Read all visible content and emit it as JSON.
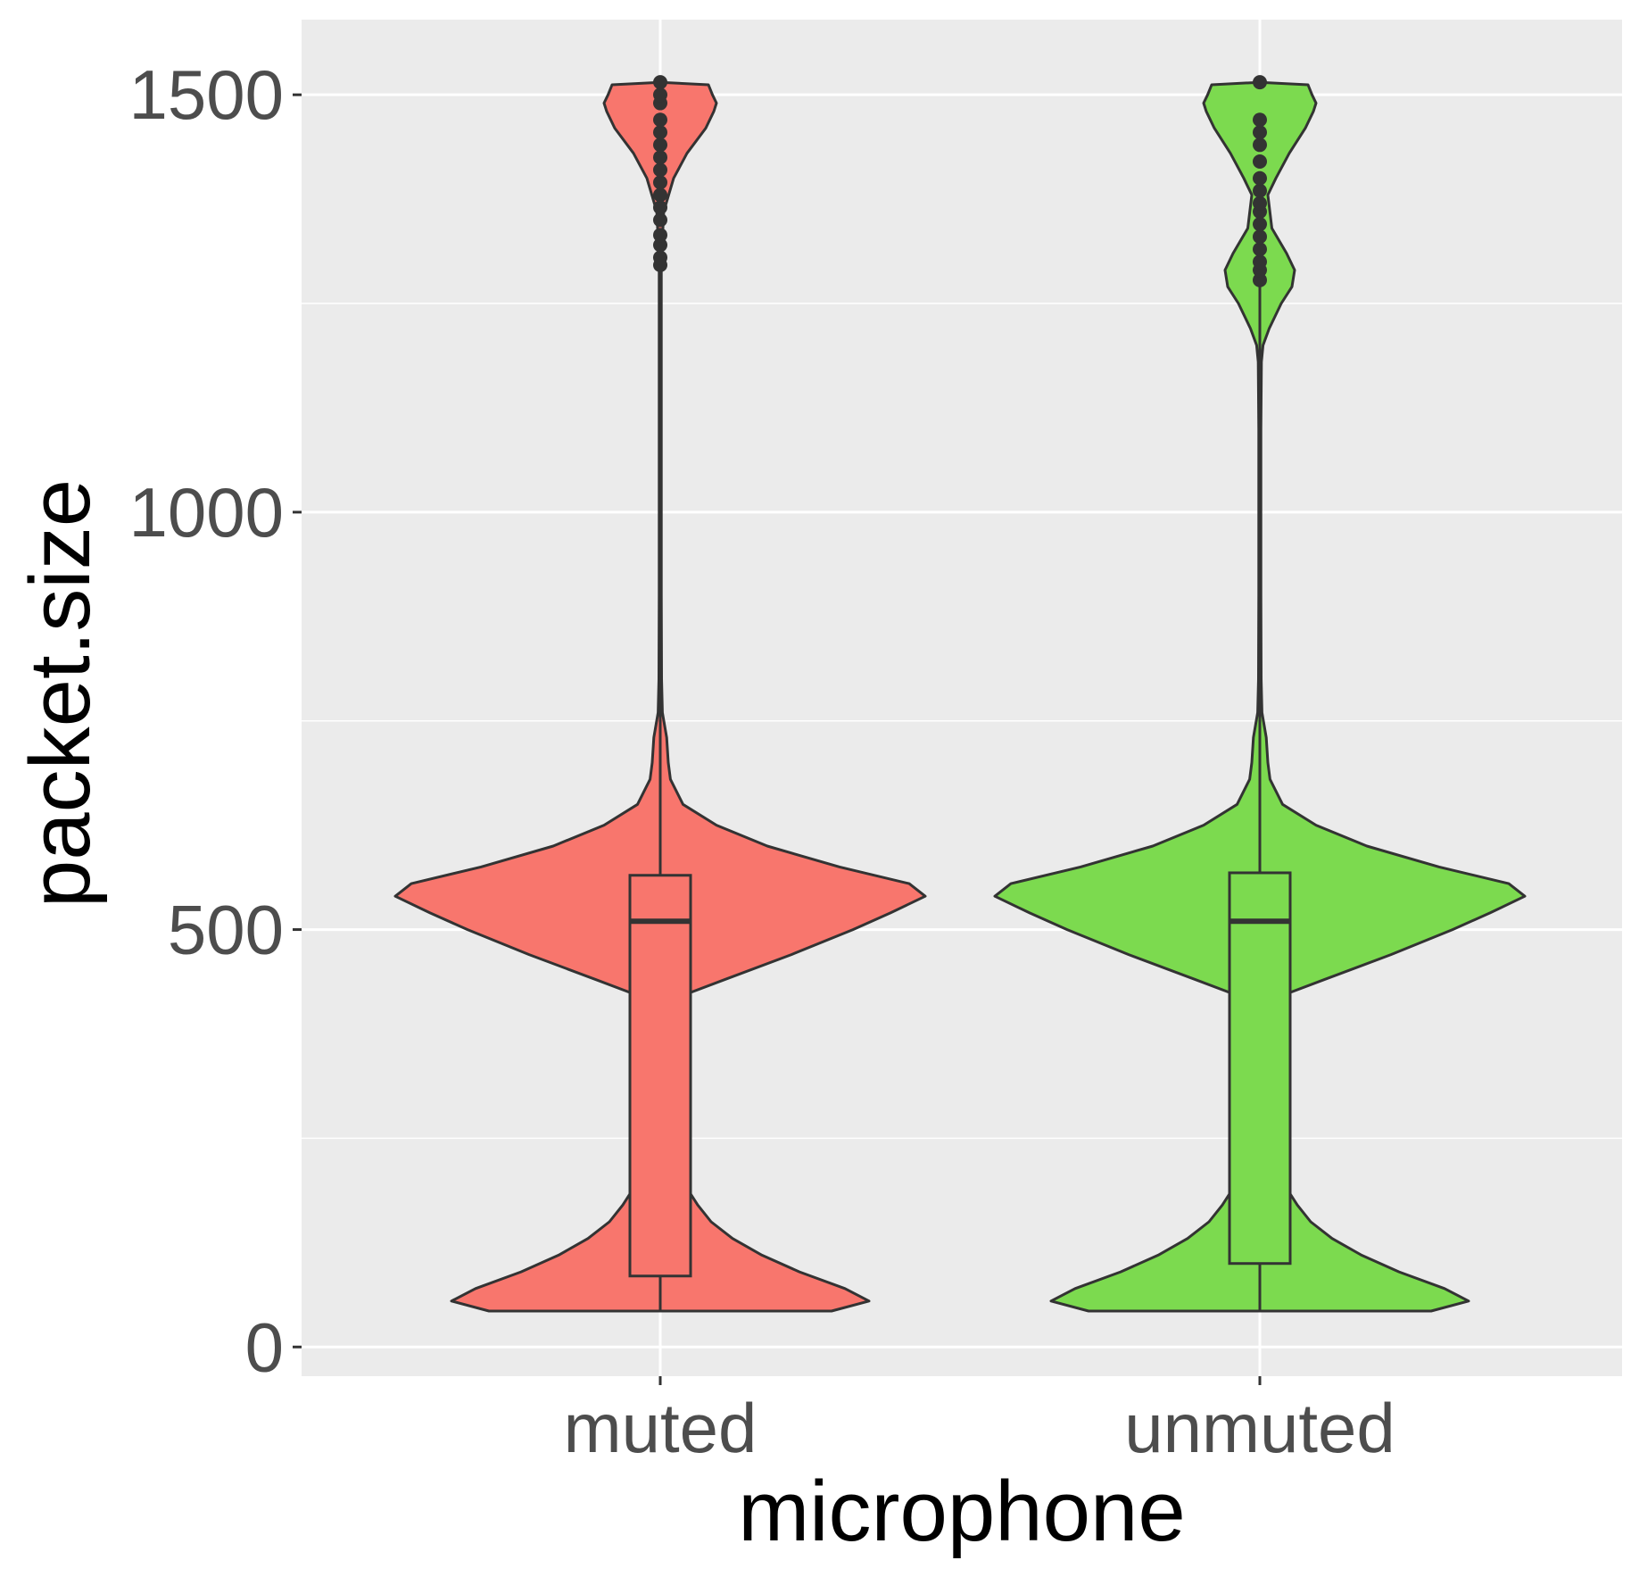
{
  "chart_data": {
    "type": "violin",
    "xlabel": "microphone",
    "ylabel": "packet.size",
    "ylim": [
      -35,
      1590
    ],
    "yticks": [
      0,
      500,
      1000,
      1500
    ],
    "ytick_labels": [
      "0",
      "500",
      "1000",
      "1500"
    ],
    "categories": [
      "muted",
      "unmuted"
    ],
    "grid": true,
    "legend": "none",
    "colors": {
      "muted": "#F8766D",
      "unmuted": "#7CDA4F",
      "outline": "#333333",
      "panel": "#EBEBEB",
      "grid": "#FFFFFF"
    },
    "series": [
      {
        "category": "muted",
        "box": {
          "min": 43,
          "q1": 85,
          "median": 510,
          "q3": 565,
          "whisker_high": 1290
        },
        "outliers": [
          1296,
          1305,
          1320,
          1332,
          1350,
          1365,
          1380,
          1395,
          1410,
          1425,
          1440,
          1455,
          1470,
          1490,
          1500,
          1515
        ],
        "density_profile": [
          [
            43,
            0.64
          ],
          [
            55,
            0.78
          ],
          [
            70,
            0.69
          ],
          [
            90,
            0.52
          ],
          [
            110,
            0.38
          ],
          [
            130,
            0.27
          ],
          [
            150,
            0.19
          ],
          [
            170,
            0.14
          ],
          [
            190,
            0.1
          ],
          [
            215,
            0.07
          ],
          [
            250,
            0.05
          ],
          [
            300,
            0.04
          ],
          [
            350,
            0.042
          ],
          [
            400,
            0.05
          ],
          [
            420,
            0.075
          ],
          [
            440,
            0.24
          ],
          [
            470,
            0.49
          ],
          [
            500,
            0.72
          ],
          [
            520,
            0.86
          ],
          [
            540,
            0.99
          ],
          [
            555,
            0.93
          ],
          [
            575,
            0.67
          ],
          [
            600,
            0.4
          ],
          [
            625,
            0.21
          ],
          [
            650,
            0.085
          ],
          [
            680,
            0.038
          ],
          [
            700,
            0.03
          ],
          [
            730,
            0.024
          ],
          [
            760,
            0.008
          ],
          [
            800,
            0.005
          ],
          [
            900,
            0.004
          ],
          [
            1000,
            0.004
          ],
          [
            1100,
            0.004
          ],
          [
            1200,
            0.004
          ],
          [
            1300,
            0.004
          ],
          [
            1360,
            0.013
          ],
          [
            1400,
            0.05
          ],
          [
            1430,
            0.1
          ],
          [
            1460,
            0.17
          ],
          [
            1480,
            0.2
          ],
          [
            1490,
            0.21
          ],
          [
            1500,
            0.195
          ],
          [
            1512,
            0.18
          ],
          [
            1515,
            0
          ]
        ]
      },
      {
        "category": "unmuted",
        "box": {
          "min": 43,
          "q1": 100,
          "median": 510,
          "q3": 568,
          "whisker_high": 1270
        },
        "outliers": [
          1278,
          1290,
          1300,
          1315,
          1330,
          1345,
          1360,
          1370,
          1385,
          1400,
          1420,
          1440,
          1455,
          1470,
          1515
        ],
        "density_profile": [
          [
            43,
            0.64
          ],
          [
            55,
            0.78
          ],
          [
            70,
            0.69
          ],
          [
            90,
            0.52
          ],
          [
            110,
            0.38
          ],
          [
            130,
            0.27
          ],
          [
            150,
            0.19
          ],
          [
            170,
            0.14
          ],
          [
            190,
            0.1
          ],
          [
            215,
            0.07
          ],
          [
            250,
            0.05
          ],
          [
            300,
            0.04
          ],
          [
            350,
            0.042
          ],
          [
            400,
            0.05
          ],
          [
            420,
            0.075
          ],
          [
            440,
            0.24
          ],
          [
            470,
            0.49
          ],
          [
            500,
            0.72
          ],
          [
            520,
            0.86
          ],
          [
            540,
            0.99
          ],
          [
            555,
            0.93
          ],
          [
            575,
            0.67
          ],
          [
            600,
            0.4
          ],
          [
            625,
            0.21
          ],
          [
            650,
            0.085
          ],
          [
            680,
            0.038
          ],
          [
            700,
            0.03
          ],
          [
            730,
            0.024
          ],
          [
            760,
            0.008
          ],
          [
            800,
            0.005
          ],
          [
            900,
            0.004
          ],
          [
            1000,
            0.004
          ],
          [
            1100,
            0.004
          ],
          [
            1180,
            0.006
          ],
          [
            1200,
            0.012
          ],
          [
            1220,
            0.035
          ],
          [
            1250,
            0.08
          ],
          [
            1270,
            0.12
          ],
          [
            1290,
            0.13
          ],
          [
            1310,
            0.1
          ],
          [
            1340,
            0.045
          ],
          [
            1380,
            0.03
          ],
          [
            1400,
            0.06
          ],
          [
            1430,
            0.11
          ],
          [
            1460,
            0.17
          ],
          [
            1480,
            0.2
          ],
          [
            1490,
            0.21
          ],
          [
            1500,
            0.195
          ],
          [
            1512,
            0.18
          ],
          [
            1515,
            0
          ]
        ]
      }
    ]
  }
}
